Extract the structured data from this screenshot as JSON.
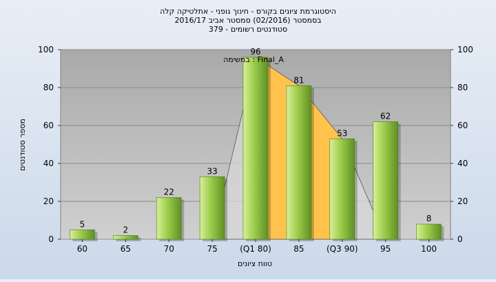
{
  "chart_data": {
    "type": "bar",
    "title_lines": [
      "היסטוגרמת ציונים בקורס - חינוך גופני - אתלטיקה קלה",
      "בסמסטר  (02/2016)  סמסטר אביב 2016/17",
      "379 - סטודנטים רשומים"
    ],
    "annotation": "במשימה : Final_A",
    "xlabel": "טווח ציונים",
    "ylabel": "מספר סטודנטים",
    "categories": [
      "60",
      "65",
      "70",
      "75",
      "(Q1 80)",
      "85",
      "(Q3 90)",
      "95",
      "100"
    ],
    "values": [
      5,
      2,
      22,
      33,
      96,
      81,
      53,
      62,
      8
    ],
    "ylim": [
      0,
      100
    ],
    "yticks": [
      0,
      20,
      40,
      60,
      80,
      100
    ],
    "grid": true,
    "colors": {
      "plot_bg": "#b7b7b7",
      "bar_light": "#d8ef9a",
      "bar_mid": "#9ccc4a",
      "bar_dark": "#5f8f24",
      "iqr_fill": "#ffc34d",
      "outer_fill": "#d9d9d9"
    }
  }
}
